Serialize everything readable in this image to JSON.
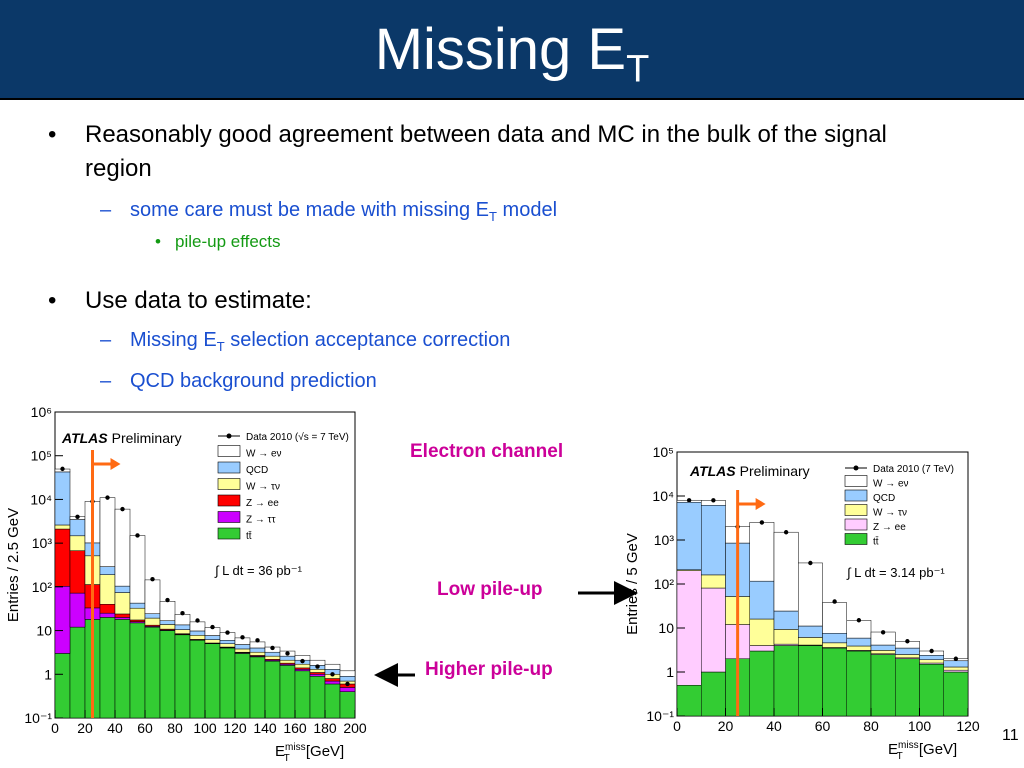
{
  "slide": {
    "title": {
      "text": "Missing E",
      "sub": "T"
    },
    "bullets": [
      {
        "level": 1,
        "text": "Reasonably good agreement between data and MC in the bulk of the signal region"
      },
      {
        "level": 2,
        "text": "some care must be made with missing E",
        "sub": "T",
        "rest": " model"
      },
      {
        "level": 3,
        "text": "pile-up effects"
      },
      {
        "level": 1,
        "text": "Use data to estimate:"
      },
      {
        "level": 2,
        "text": "Missing E",
        "sub": "T",
        "rest": " selection acceptance correction"
      },
      {
        "level": 2,
        "text": "QCD background prediction"
      }
    ],
    "labels": {
      "electron": "Electron channel",
      "low": "Low pile-up",
      "high": "Higher pile-up"
    },
    "page_number": "11"
  },
  "chart_data": [
    {
      "type": "histogram",
      "stacked": true,
      "log_y": true,
      "legend": "upper right",
      "atlas_label": "ATLAS",
      "status": "Preliminary",
      "lumi": "∫ L dt = 36 pb⁻¹",
      "y_label": "Entries / 2.5 GeV",
      "x_label": {
        "base": "E",
        "sup": "miss",
        "sub": "T",
        "unit": " [GeV]"
      },
      "cut_x": 25,
      "xlim": [
        0,
        200
      ],
      "ylim": [
        0.1,
        1000000
      ],
      "xticks": [
        0,
        20,
        40,
        60,
        80,
        100,
        120,
        140,
        160,
        180,
        200
      ],
      "yticks": [
        {
          "value": 0.1,
          "label": "10⁻¹"
        },
        1,
        10,
        {
          "value": 100,
          "label": "10²"
        },
        {
          "value": 1000,
          "label": "10³"
        },
        {
          "value": 10000,
          "label": "10⁴"
        },
        {
          "value": 100000,
          "label": "10⁵"
        },
        {
          "value": 1000000,
          "label": "10⁶"
        }
      ],
      "bins": [
        0,
        10,
        20,
        30,
        40,
        50,
        60,
        70,
        80,
        90,
        100,
        110,
        120,
        130,
        140,
        150,
        160,
        170,
        180,
        190,
        200
      ],
      "data": {
        "name": "Data 2010 (√s = 7 TeV)",
        "values": [
          50000,
          4000,
          9000,
          11000,
          6000,
          1500,
          150,
          50,
          25,
          17,
          12,
          9,
          7,
          6,
          4,
          3,
          2,
          1.5,
          1,
          0.6
        ]
      },
      "series": [
        {
          "name": "tt̄",
          "color": "#33cc33",
          "values": [
            3,
            12,
            18,
            20,
            18,
            15,
            12,
            10,
            8,
            6,
            5,
            4,
            3,
            2.5,
            2,
            1.6,
            1.2,
            0.9,
            0.6,
            0.4
          ]
        },
        {
          "name": "Z → ττ",
          "color": "#cc00ff",
          "values": [
            100,
            60,
            15,
            5,
            2,
            1,
            0.5,
            0.3,
            0.2,
            0.1,
            0.1,
            0.1,
            0.1,
            0.1,
            0.1,
            0.1,
            0.1,
            0.1,
            0.1,
            0.1
          ]
        },
        {
          "name": "Z → ee",
          "color": "#ff0000",
          "values": [
            2000,
            600,
            80,
            15,
            4,
            1.5,
            0.8,
            0.5,
            0.3,
            0.2,
            0.1,
            0.1,
            0.1,
            0.1,
            0.1,
            0.1,
            0.1,
            0.1,
            0.1,
            0.1
          ]
        },
        {
          "name": "W → τν",
          "color": "#ffff99",
          "values": [
            500,
            800,
            400,
            150,
            50,
            15,
            6,
            3,
            2,
            1.5,
            1,
            0.8,
            0.6,
            0.5,
            0.4,
            0.3,
            0.3,
            0.2,
            0.2,
            0.1
          ]
        },
        {
          "name": "QCD",
          "color": "#99ccff",
          "values": [
            40000,
            2000,
            500,
            100,
            30,
            10,
            5,
            3,
            3,
            2,
            1.5,
            1,
            1,
            0.8,
            0.6,
            0.5,
            0.4,
            0.3,
            0.3,
            0.2
          ]
        },
        {
          "name": "W → eν",
          "color": "#ffffff",
          "values": [
            7000,
            600,
            8000,
            10700,
            5900,
            1450,
            120,
            30,
            10,
            6,
            4,
            3,
            2,
            1.5,
            1,
            0.8,
            0.6,
            0.5,
            0.4,
            0.3
          ]
        }
      ]
    },
    {
      "type": "histogram",
      "stacked": true,
      "log_y": true,
      "legend": "upper right",
      "atlas_label": "ATLAS",
      "status": "Preliminary",
      "lumi": "∫ L dt =  3.14 pb⁻¹",
      "y_label": "Entries / 5 GeV",
      "x_label": {
        "base": "E",
        "sup": "miss",
        "sub": "T",
        "unit": " [GeV]"
      },
      "cut_x": 25,
      "xlim": [
        0,
        120
      ],
      "ylim": [
        0.1,
        100000
      ],
      "xticks": [
        0,
        20,
        40,
        60,
        80,
        100,
        120
      ],
      "yticks": [
        {
          "value": 0.1,
          "label": "10⁻¹"
        },
        1,
        10,
        {
          "value": 100,
          "label": "10²"
        },
        {
          "value": 1000,
          "label": "10³"
        },
        {
          "value": 10000,
          "label": "10⁴"
        },
        {
          "value": 100000,
          "label": "10⁵"
        }
      ],
      "bins": [
        0,
        10,
        20,
        30,
        40,
        50,
        60,
        70,
        80,
        90,
        100,
        110,
        120
      ],
      "data": {
        "name": "Data 2010 (7 TeV)",
        "values": [
          8000,
          8000,
          2000,
          2500,
          1500,
          300,
          40,
          15,
          8,
          5,
          3,
          2
        ]
      },
      "series": [
        {
          "name": "tt̄",
          "color": "#33cc33",
          "values": [
            0.5,
            1,
            2,
            3,
            4,
            4,
            3.5,
            3,
            2.5,
            2,
            1.5,
            1
          ]
        },
        {
          "name": "Z → ee",
          "color": "#ffccff",
          "values": [
            200,
            80,
            10,
            1,
            0.3,
            0.1,
            0.1,
            0.1,
            0.1,
            0.1,
            0.1,
            0.1
          ]
        },
        {
          "name": "W → τν",
          "color": "#ffff99",
          "values": [
            10,
            80,
            40,
            12,
            5,
            2,
            1,
            0.8,
            0.5,
            0.4,
            0.3,
            0.2
          ]
        },
        {
          "name": "QCD",
          "color": "#99ccff",
          "values": [
            7000,
            6000,
            800,
            100,
            15,
            5,
            3,
            2,
            1,
            1,
            0.5,
            0.5
          ]
        },
        {
          "name": "W → eν",
          "color": "#ffffff",
          "values": [
            800,
            1800,
            1150,
            2400,
            1480,
            290,
            30,
            9,
            4,
            1.5,
            0.6,
            0.2
          ]
        }
      ]
    }
  ]
}
